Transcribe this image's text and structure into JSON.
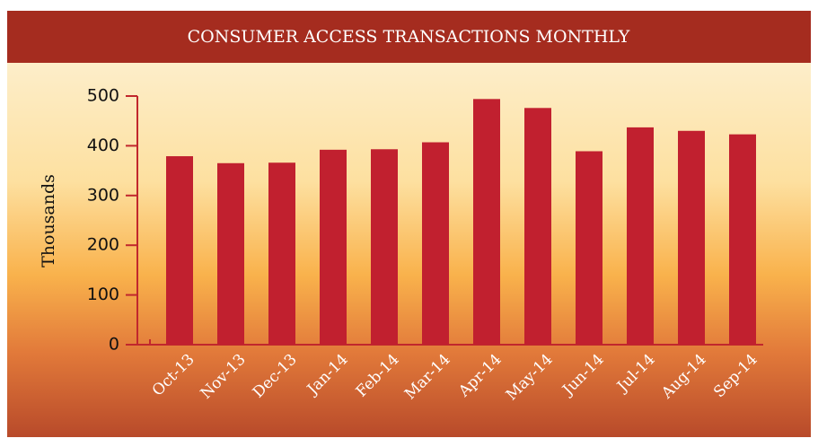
{
  "chart_data": {
    "type": "bar",
    "title": "CONSUMER ACCESS TRANSACTIONS MONTHLY",
    "y_label": "Thousands",
    "categories": [
      "Oct-13",
      "Nov-13",
      "Dec-13",
      "Jan-14",
      "Feb-14",
      "Mar-14",
      "Apr-14",
      "May-14",
      "Jun-14",
      "Jul-14",
      "Aug-14",
      "Sep-14"
    ],
    "values": [
      379,
      365,
      366,
      392,
      393,
      407,
      494,
      476,
      389,
      437,
      430,
      423
    ],
    "color": "#c1202f",
    "ylim": [
      0,
      500
    ],
    "yticks": [
      0,
      100,
      200,
      300,
      400,
      500
    ],
    "grid": false
  }
}
